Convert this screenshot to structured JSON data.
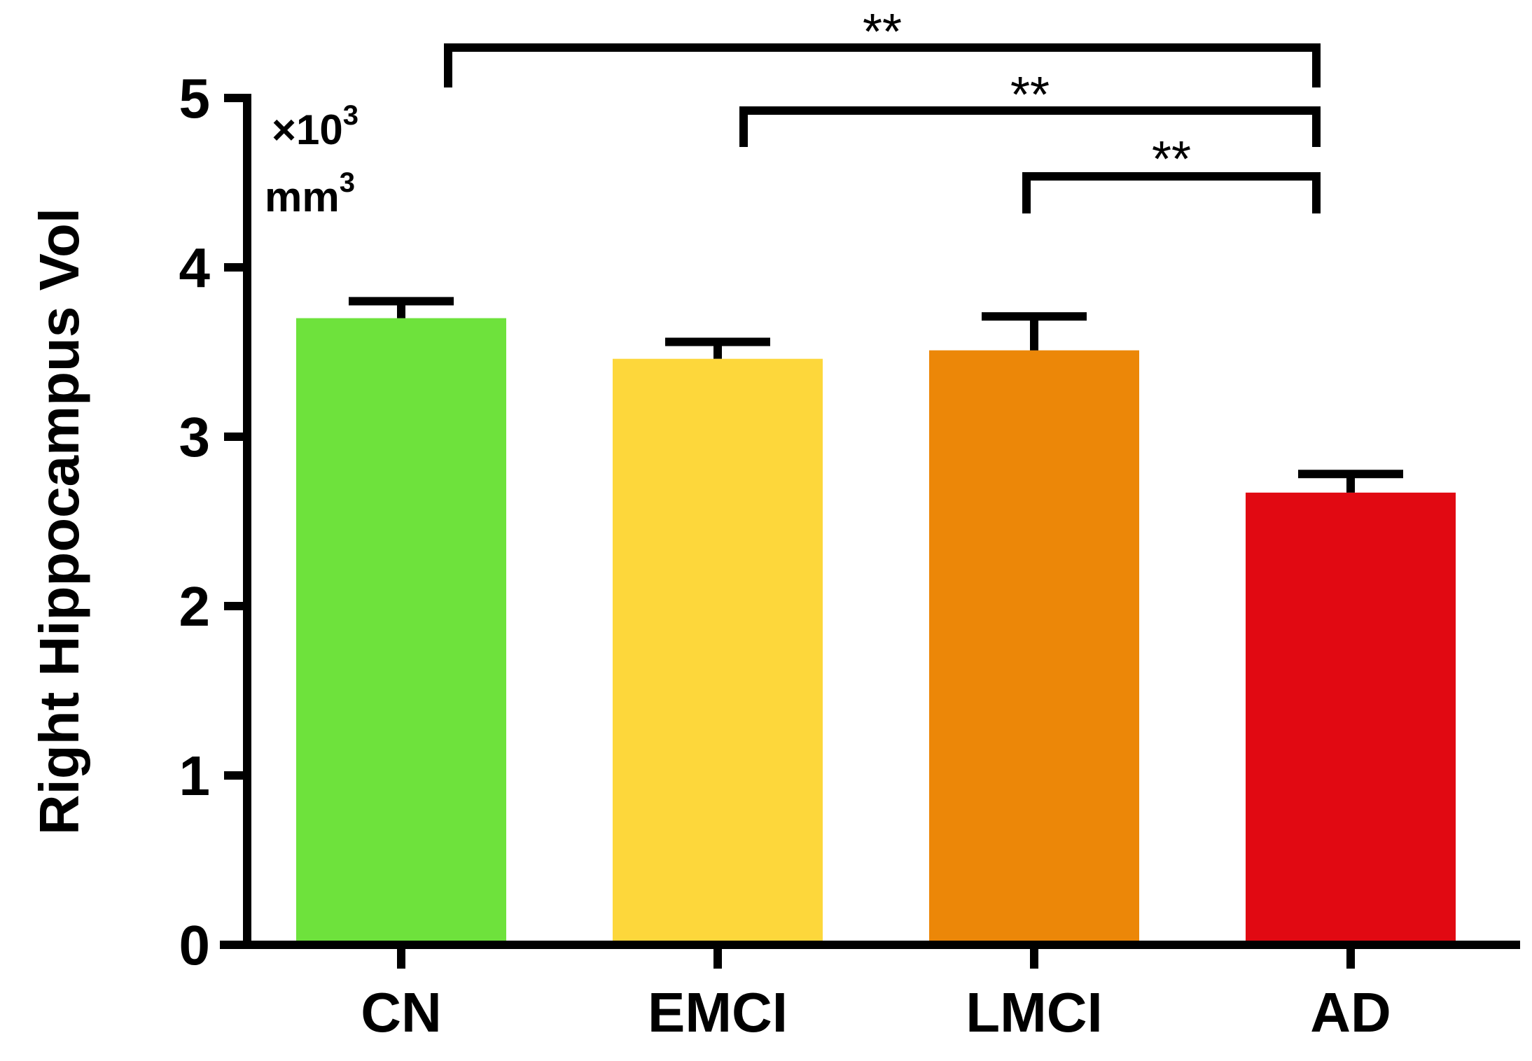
{
  "chart_data": {
    "type": "bar",
    "title": "",
    "xlabel": "",
    "ylabel": "Right Hippocampus Vol",
    "unit_line1": "×10",
    "unit_line1_sup": "3",
    "unit_line2": "mm",
    "unit_line2_sup": "3",
    "categories": [
      "CN",
      "EMCI",
      "LMCI",
      "AD"
    ],
    "values": [
      3.7,
      3.46,
      3.51,
      2.67
    ],
    "errors": [
      0.1,
      0.1,
      0.2,
      0.11
    ],
    "colors": [
      "#6ee23c",
      "#fdd73b",
      "#ec8708",
      "#e10912"
    ],
    "ylim": [
      0,
      5
    ],
    "yticks": [
      0,
      1,
      2,
      3,
      4,
      5
    ],
    "grid": false,
    "legend": "none",
    "significance": [
      {
        "from": "CN",
        "to": "AD",
        "label": "**"
      },
      {
        "from": "EMCI",
        "to": "AD",
        "label": "**"
      },
      {
        "from": "LMCI",
        "to": "AD",
        "label": "**"
      }
    ]
  }
}
